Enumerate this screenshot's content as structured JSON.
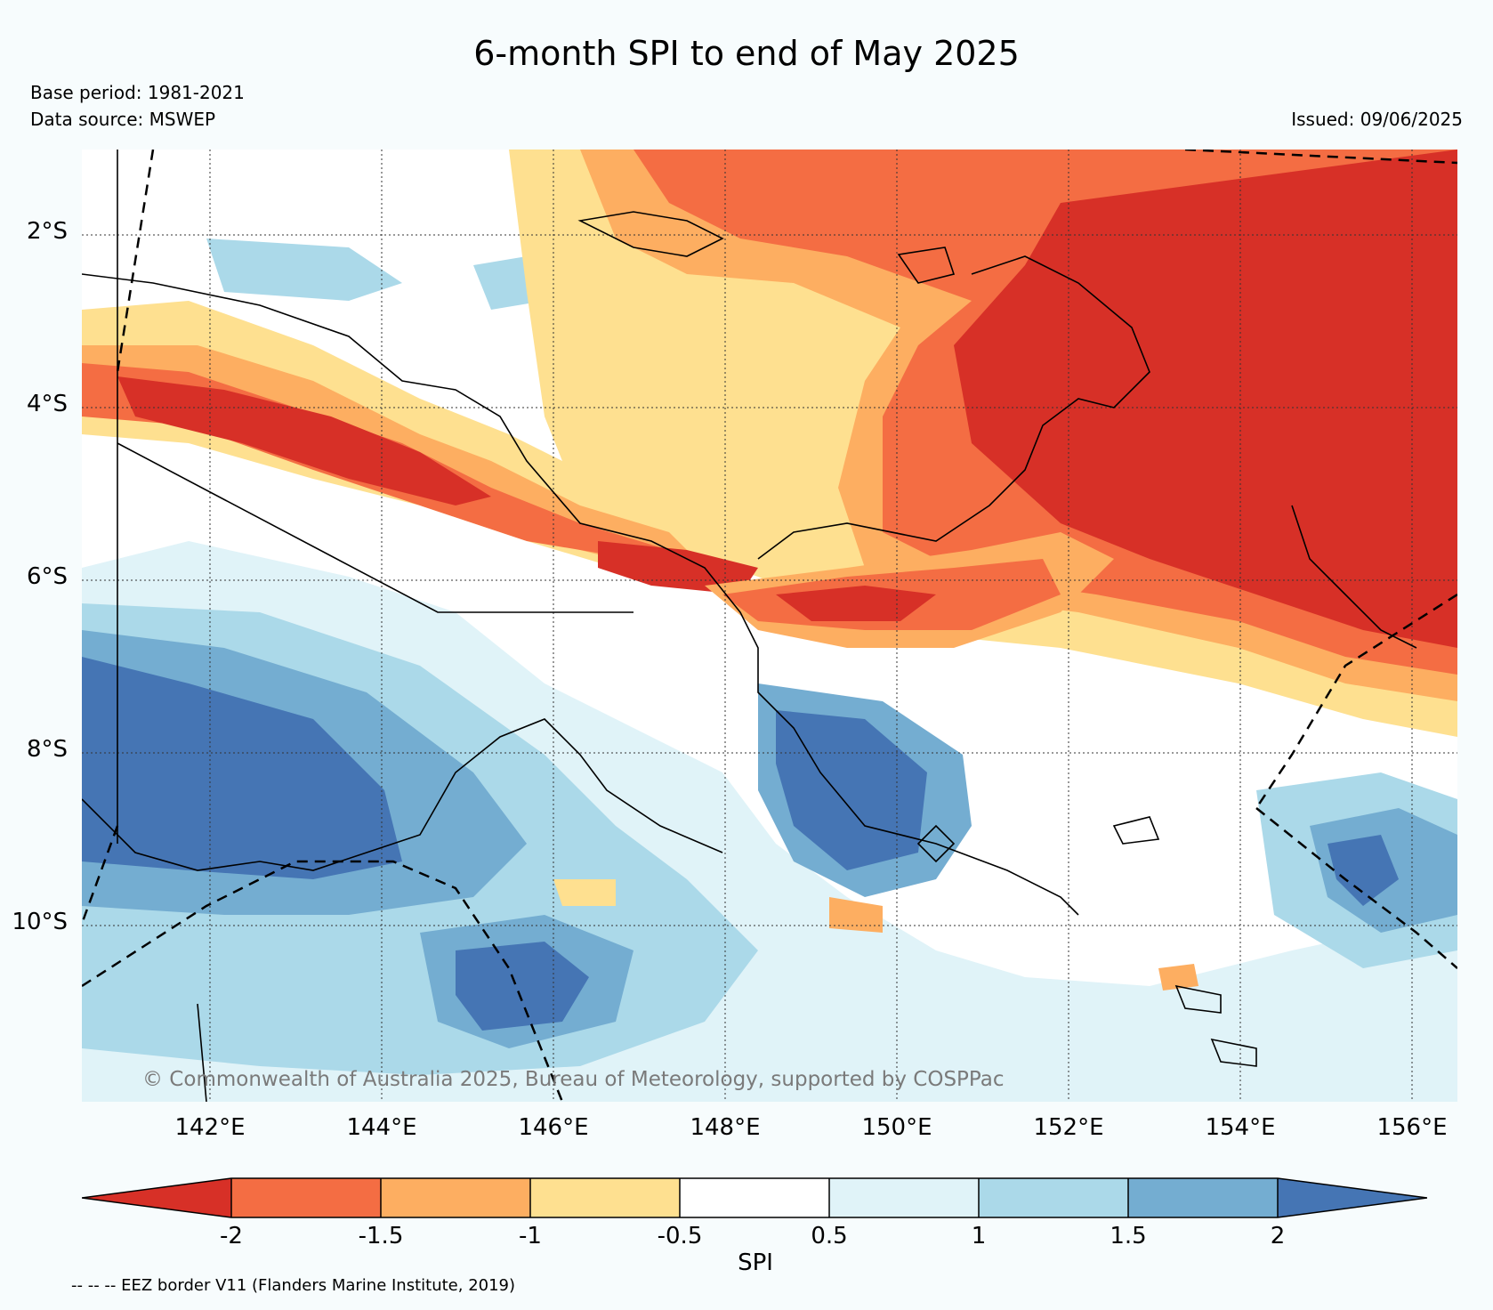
{
  "header": {
    "title": "6-month SPI to end of May 2025",
    "base_period": "Base period: 1981-2021",
    "data_source": "Data source: MSWEP",
    "issued": "Issued: 09/06/2025"
  },
  "map": {
    "lat_labels": [
      "2°S",
      "4°S",
      "6°S",
      "8°S",
      "10°S"
    ],
    "lon_labels": [
      "142°E",
      "144°E",
      "146°E",
      "148°E",
      "150°E",
      "152°E",
      "154°E",
      "156°E"
    ],
    "copyright": "© Commonwealth of Australia 2025, Bureau of Meteorology, supported by COSPPac"
  },
  "colorbar": {
    "label": "SPI",
    "ticks": [
      "-2",
      "-1.5",
      "-1",
      "-0.5",
      "0.5",
      "1",
      "1.5",
      "2"
    ],
    "colors": [
      "#d73027",
      "#f46d43",
      "#fdae61",
      "#fee090",
      "#ffffff",
      "#e0f3f8",
      "#abd9e9",
      "#74add1",
      "#4575b4"
    ]
  },
  "footer": {
    "eez_note": "-- -- -- EEZ border V11 (Flanders Marine Institute, 2019)"
  }
}
